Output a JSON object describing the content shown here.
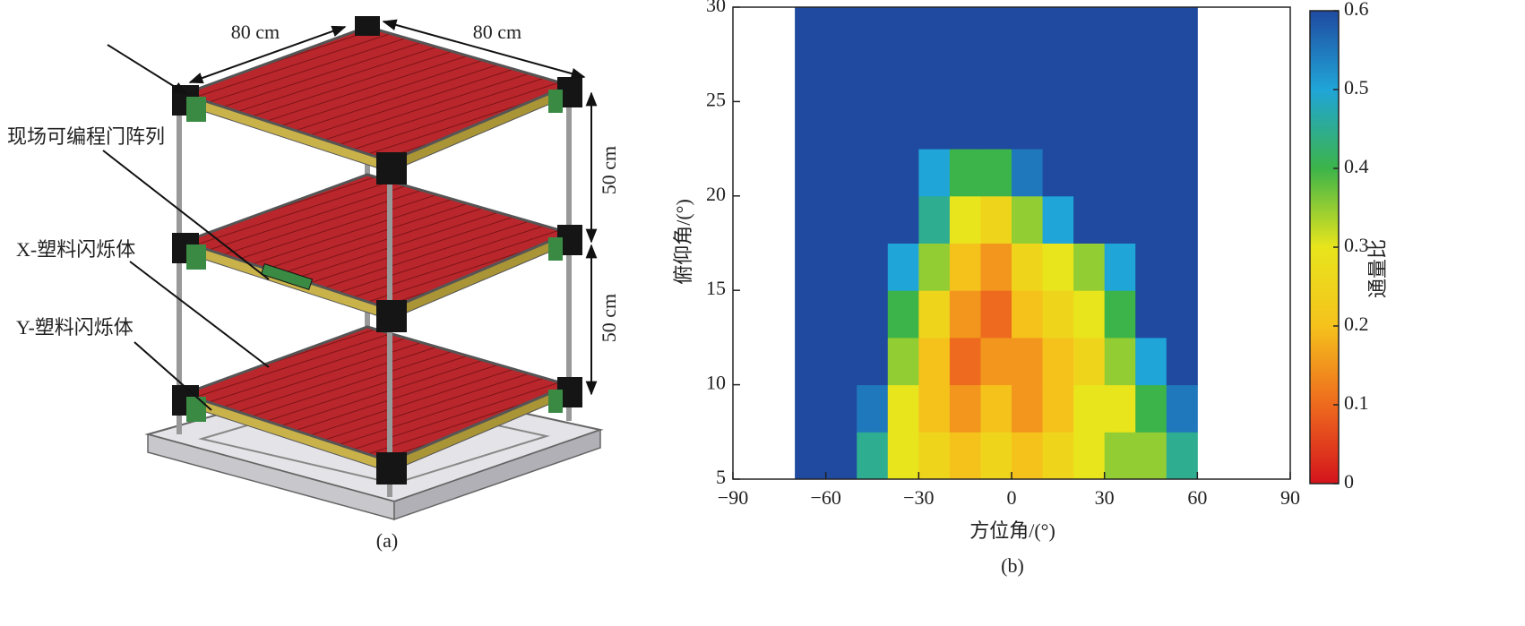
{
  "panel_a": {
    "dimension_labels": [
      "80 cm",
      "80 cm",
      "50 cm",
      "50 cm"
    ],
    "labels": [
      "现场可编程门阵列",
      "X-塑料闪烁体",
      "Y-塑料闪烁体"
    ],
    "caption": "(a)"
  },
  "chart_data": {
    "type": "heatmap",
    "caption": "(b)",
    "xlabel": "方位角/(°)",
    "ylabel": "俯仰角/(°)",
    "xlim": [
      -90,
      90
    ],
    "xticks": [
      {
        "value": -90,
        "label": "−90"
      },
      {
        "value": -60,
        "label": "−60"
      },
      {
        "value": -30,
        "label": "−30"
      },
      0,
      30,
      60,
      90
    ],
    "ylim": [
      5,
      30
    ],
    "yticks": [
      5,
      10,
      15,
      20,
      25,
      30
    ],
    "x": [
      -65,
      -55,
      -45,
      -35,
      -25,
      -15,
      -5,
      5,
      15,
      25,
      35,
      45,
      55
    ],
    "y": [
      6.25,
      8.75,
      11.25,
      13.75,
      16.25,
      18.75,
      21.25,
      23.75,
      26.25,
      28.75
    ],
    "values": [
      [
        0.6,
        0.6,
        0.45,
        0.3,
        0.25,
        0.2,
        0.25,
        0.2,
        0.25,
        0.3,
        0.35,
        0.35,
        0.45
      ],
      [
        0.6,
        0.6,
        0.55,
        0.3,
        0.2,
        0.15,
        0.2,
        0.15,
        0.2,
        0.3,
        0.3,
        0.4,
        0.55
      ],
      [
        0.6,
        0.6,
        0.6,
        0.35,
        0.2,
        0.1,
        0.15,
        0.15,
        0.2,
        0.25,
        0.35,
        0.5,
        0.6
      ],
      [
        0.6,
        0.6,
        0.6,
        0.4,
        0.25,
        0.15,
        0.1,
        0.2,
        0.25,
        0.3,
        0.4,
        0.6,
        0.6
      ],
      [
        0.6,
        0.6,
        0.6,
        0.5,
        0.35,
        0.2,
        0.15,
        0.25,
        0.3,
        0.35,
        0.5,
        0.6,
        0.6
      ],
      [
        0.6,
        0.6,
        0.6,
        0.6,
        0.45,
        0.3,
        0.25,
        0.35,
        0.5,
        0.6,
        0.6,
        0.6,
        0.6
      ],
      [
        0.6,
        0.6,
        0.6,
        0.6,
        0.5,
        0.4,
        0.4,
        0.55,
        0.6,
        0.6,
        0.6,
        0.6,
        0.6
      ],
      [
        0.6,
        0.6,
        0.6,
        0.6,
        0.6,
        0.6,
        0.6,
        0.6,
        0.6,
        0.6,
        0.6,
        0.6,
        0.6
      ],
      [
        0.6,
        0.6,
        0.6,
        0.6,
        0.6,
        0.6,
        0.6,
        0.6,
        0.6,
        0.6,
        0.6,
        0.6,
        0.6
      ],
      [
        0.6,
        0.6,
        0.6,
        0.6,
        0.6,
        0.6,
        0.6,
        0.6,
        0.6,
        0.6,
        0.6,
        0.6,
        0.6
      ]
    ],
    "clim": [
      0,
      0.6
    ],
    "colorscale": [
      "#d4141c",
      "#ee6a1e",
      "#f5c21c",
      "#e8e51c",
      "#3cb44a",
      "#20a5d8",
      "#1f4aa0"
    ],
    "colorbar_ticks": [
      0,
      0.1,
      0.2,
      0.3,
      0.4,
      0.5,
      0.6
    ],
    "colorbar_label": "通量比"
  }
}
